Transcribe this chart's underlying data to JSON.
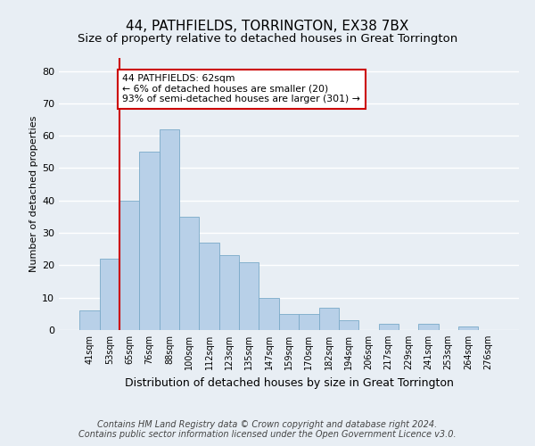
{
  "title": "44, PATHFIELDS, TORRINGTON, EX38 7BX",
  "subtitle": "Size of property relative to detached houses in Great Torrington",
  "xlabel": "Distribution of detached houses by size in Great Torrington",
  "ylabel": "Number of detached properties",
  "bar_labels": [
    "41sqm",
    "53sqm",
    "65sqm",
    "76sqm",
    "88sqm",
    "100sqm",
    "112sqm",
    "123sqm",
    "135sqm",
    "147sqm",
    "159sqm",
    "170sqm",
    "182sqm",
    "194sqm",
    "206sqm",
    "217sqm",
    "229sqm",
    "241sqm",
    "253sqm",
    "264sqm",
    "276sqm"
  ],
  "bar_values": [
    6,
    22,
    40,
    55,
    62,
    35,
    27,
    23,
    21,
    10,
    5,
    5,
    7,
    3,
    0,
    2,
    0,
    2,
    0,
    1,
    0
  ],
  "bar_color": "#b8d0e8",
  "bar_edge_color": "#7aaac8",
  "highlight_line_color": "#cc0000",
  "annotation_text": "44 PATHFIELDS: 62sqm\n← 6% of detached houses are smaller (20)\n93% of semi-detached houses are larger (301) →",
  "annotation_box_color": "#ffffff",
  "annotation_box_edge": "#cc0000",
  "ylim": [
    0,
    84
  ],
  "yticks": [
    0,
    10,
    20,
    30,
    40,
    50,
    60,
    70,
    80
  ],
  "background_color": "#e8eef4",
  "footer_text": "Contains HM Land Registry data © Crown copyright and database right 2024.\nContains public sector information licensed under the Open Government Licence v3.0.",
  "title_fontsize": 11,
  "xlabel_fontsize": 9,
  "ylabel_fontsize": 8,
  "footer_fontsize": 7
}
